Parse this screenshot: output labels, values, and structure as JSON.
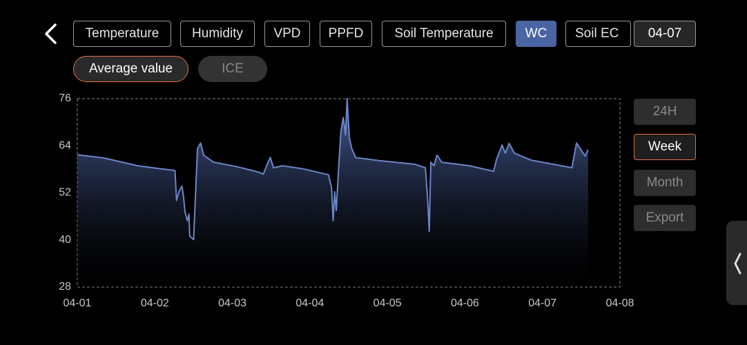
{
  "tabs": [
    "Temperature",
    "Humidity",
    "VPD",
    "PPFD",
    "Soil Temperature",
    "WC",
    "Soil EC"
  ],
  "date": "04-07",
  "modes": [
    "Average value",
    "ICE"
  ],
  "ranges": [
    "24H",
    "Week",
    "Month",
    "Export"
  ],
  "chart_data": {
    "type": "area",
    "x": [
      0.0,
      0.34,
      0.78,
      1.05,
      1.26,
      1.28,
      1.31,
      1.35,
      1.37,
      1.39,
      1.42,
      1.44,
      1.45,
      1.5,
      1.55,
      1.59,
      1.63,
      1.76,
      2.03,
      2.3,
      2.4,
      2.46,
      2.49,
      2.53,
      2.65,
      2.92,
      3.24,
      3.28,
      3.3,
      3.32,
      3.34,
      3.37,
      3.4,
      3.43,
      3.46,
      3.48,
      3.51,
      3.54,
      3.59,
      3.9,
      4.35,
      4.49,
      4.52,
      4.54,
      4.56,
      4.6,
      4.64,
      4.7,
      5.06,
      5.37,
      5.41,
      5.48,
      5.52,
      5.57,
      5.64,
      5.86,
      6.38,
      6.44,
      6.55,
      6.59
    ],
    "series": [
      {
        "color": "#6c86c8",
        "values": [
          61.7,
          60.9,
          58.9,
          58.2,
          57.7,
          50.1,
          52.3,
          53.7,
          51.0,
          47.0,
          44.9,
          46.6,
          41.0,
          40.1,
          63.3,
          64.7,
          61.6,
          59.8,
          58.8,
          57.5,
          56.8,
          59.8,
          61.0,
          58.4,
          58.9,
          58.1,
          56.6,
          53.3,
          44.9,
          52.3,
          47.5,
          58.1,
          67.7,
          71.2,
          66.8,
          76.0,
          66.0,
          63.3,
          61.0,
          60.2,
          59.3,
          58.4,
          50.1,
          42.2,
          59.8,
          58.9,
          61.6,
          59.8,
          58.9,
          57.5,
          60.7,
          64.2,
          62.1,
          64.6,
          62.1,
          60.3,
          58.4,
          64.7,
          61.4,
          63.0
        ]
      }
    ],
    "xlim": [
      0,
      7
    ],
    "xticks": [
      {
        "value": 0,
        "label": "04-01"
      },
      {
        "value": 1,
        "label": "04-02"
      },
      {
        "value": 2,
        "label": "04-03"
      },
      {
        "value": 3,
        "label": "04-04"
      },
      {
        "value": 4,
        "label": "04-05"
      },
      {
        "value": 5,
        "label": "04-06"
      },
      {
        "value": 6,
        "label": "04-07"
      },
      {
        "value": 7,
        "label": "04-08"
      }
    ],
    "ylim": [
      28,
      76
    ],
    "yticks": [
      28,
      40,
      52,
      64,
      76
    ]
  }
}
